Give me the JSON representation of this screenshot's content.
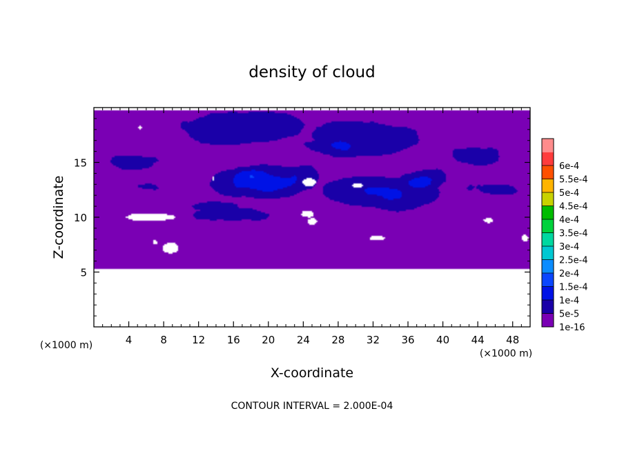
{
  "chart_data": {
    "type": "heatmap",
    "title": "density of cloud",
    "xlabel": "X-coordinate",
    "ylabel": "Z-coordinate",
    "x_unit": "(×1000 m)",
    "y_unit": "(×1000 m)",
    "footnote": "CONTOUR INTERVAL = 2.000E-04",
    "xlim": [
      0,
      50
    ],
    "ylim": [
      0,
      20
    ],
    "x_ticks": [
      4,
      8,
      12,
      16,
      20,
      24,
      28,
      32,
      36,
      40,
      44,
      48
    ],
    "y_ticks": [
      5,
      10,
      15
    ],
    "colorbar": {
      "labels": [
        "1e-16",
        "5e-5",
        "1e-4",
        "1.5e-4",
        "2e-4",
        "2.5e-4",
        "3e-4",
        "3.5e-4",
        "4e-4",
        "4.5e-4",
        "5e-4",
        "5.5e-4",
        "6e-4"
      ],
      "colors": [
        "#7a00b4",
        "#1a00a8",
        "#0012e6",
        "#0a46ff",
        "#0a8cff",
        "#00c8d2",
        "#00d8a0",
        "#00d23c",
        "#00bc00",
        "#c8d200",
        "#ffb400",
        "#ff5000",
        "#ff3c3c",
        "#ff8c8c"
      ]
    },
    "field": {
      "z_min": 5.3,
      "z_max": 19.8,
      "description_levels": "background 1e-16; deep blue 5e-5 to 1e-4 bands near z 10-18; peak about 1.5e-4 near x 16-24, z 12-14"
    },
    "blobs": [
      {
        "x": 17,
        "z": 18.2,
        "rx": 7.5,
        "rz": 1.6,
        "v": 8.5e-05
      },
      {
        "x": 30,
        "z": 17.2,
        "rx": 7,
        "rz": 1.7,
        "v": 9e-05
      },
      {
        "x": 27,
        "z": 16.4,
        "rx": 4,
        "rz": 0.9,
        "v": 0.000105
      },
      {
        "x": 4,
        "z": 15.0,
        "rx": 5,
        "rz": 1.3,
        "v": 6e-05
      },
      {
        "x": 43,
        "z": 15.6,
        "rx": 5,
        "rz": 1.5,
        "v": 6e-05
      },
      {
        "x": 19,
        "z": 13.3,
        "rx": 5.5,
        "rz": 1.3,
        "v": 0.00013
      },
      {
        "x": 18,
        "z": 13.8,
        "rx": 3,
        "rz": 0.9,
        "v": 0.00015
      },
      {
        "x": 33,
        "z": 12.2,
        "rx": 7,
        "rz": 1.5,
        "v": 0.000105
      },
      {
        "x": 38,
        "z": 13.2,
        "rx": 3,
        "rz": 0.9,
        "v": 0.00012
      },
      {
        "x": 45,
        "z": 12.5,
        "rx": 4.5,
        "rz": 1.0,
        "v": 6e-05
      },
      {
        "x": 16,
        "z": 10.2,
        "rx": 6,
        "rz": 0.9,
        "v": 7e-05
      },
      {
        "x": 6,
        "z": 12.6,
        "rx": 3.5,
        "rz": 0.8,
        "v": 5e-05
      },
      {
        "x": 14,
        "z": 11.0,
        "rx": 4,
        "rz": 0.6,
        "v": 7e-05
      },
      {
        "x": 22,
        "z": 5.9,
        "rx": 3,
        "rz": 0.4,
        "v": 5e-05
      },
      {
        "x": 36,
        "z": 5.9,
        "rx": 3,
        "rz": 0.4,
        "v": 5e-05
      }
    ],
    "gaps": [
      {
        "x": 6.5,
        "z": 10.0,
        "rx": 3.0,
        "rz": 0.35
      },
      {
        "x": 24.7,
        "z": 13.2,
        "rx": 0.8,
        "rz": 0.35
      },
      {
        "x": 30.2,
        "z": 12.9,
        "rx": 0.6,
        "rz": 0.2
      },
      {
        "x": 24.5,
        "z": 10.3,
        "rx": 0.7,
        "rz": 0.35
      },
      {
        "x": 25,
        "z": 9.6,
        "rx": 0.6,
        "rz": 0.3
      },
      {
        "x": 32.5,
        "z": 8.1,
        "rx": 0.9,
        "rz": 0.25
      },
      {
        "x": 45.2,
        "z": 9.7,
        "rx": 0.5,
        "rz": 0.2
      },
      {
        "x": 49.4,
        "z": 8.1,
        "rx": 0.4,
        "rz": 0.3
      },
      {
        "x": 8.8,
        "z": 7.2,
        "rx": 0.9,
        "rz": 0.45
      },
      {
        "x": 7,
        "z": 7.7,
        "rx": 0.25,
        "rz": 0.2
      },
      {
        "x": 5.3,
        "z": 18.2,
        "rx": 0.2,
        "rz": 0.2
      },
      {
        "x": 13.7,
        "z": 13.5,
        "rx": 0.12,
        "rz": 0.15
      }
    ]
  }
}
